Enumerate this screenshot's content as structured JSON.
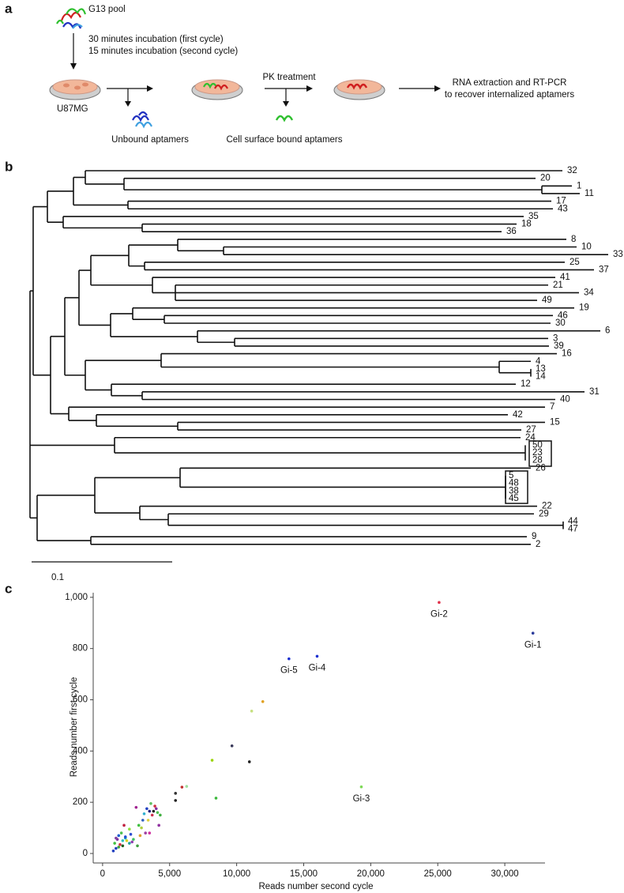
{
  "panel_labels": [
    "a",
    "b",
    "c"
  ],
  "panel_a": {
    "pool": "G13 pool",
    "incubation_1": "30 minutes incubation (first cycle)",
    "incubation_2": "15 minutes incubation (second cycle)",
    "cells": "U87MG",
    "treatment": "PK treatment",
    "unbound": "Unbound aptamers",
    "surface_bound": "Cell surface bound aptamers",
    "recovery_1": "RNA extraction and RT-PCR",
    "recovery_2": "to recover internalized aptamers"
  },
  "panel_b": {
    "leaves": [
      "32",
      "20",
      "1",
      "11",
      "17",
      "43",
      "35",
      "18",
      "36",
      "8",
      "10",
      "33",
      "25",
      "37",
      "41",
      "21",
      "34",
      "49",
      "19",
      "46",
      "30",
      "6",
      "3",
      "39",
      "16",
      "4",
      "13",
      "14",
      "12",
      "31",
      "40",
      "7",
      "42",
      "15",
      "27",
      "24",
      "50",
      "23",
      "28",
      "26",
      "5",
      "48",
      "38",
      "45",
      "22",
      "29",
      "44",
      "47",
      "9",
      "2"
    ],
    "scale_label": "0.1"
  },
  "chart_data": {
    "type": "scatter",
    "x_label": "Reads number second cycle",
    "y_label": "Reads number first cycle",
    "xlim": [
      -700,
      33000
    ],
    "ylim": [
      -37,
      1018
    ],
    "xticks": [
      0,
      {
        "value": 5000,
        "label": "5,000"
      },
      {
        "value": 10000,
        "label": "10,000"
      },
      {
        "value": 15000,
        "label": "15,000"
      },
      {
        "value": 20000,
        "label": "20,000"
      },
      {
        "value": 25000,
        "label": "25,000"
      },
      {
        "value": 30000,
        "label": "30,000"
      }
    ],
    "yticks": [
      0,
      200,
      400,
      600,
      800,
      {
        "value": 1000,
        "label": "1,000"
      }
    ],
    "x": [
      32100,
      25100,
      19300,
      16000,
      13900,
      8170,
      9650,
      10950,
      11120,
      11950,
      8460,
      5440,
      5440,
      5920,
      6270,
      1000,
      900,
      1100,
      1200,
      1300,
      1400,
      1500,
      1600,
      1700,
      1800,
      2000,
      2100,
      2200,
      2500,
      2600,
      2700,
      2900,
      3000,
      3100,
      3200,
      3300,
      3500,
      3600,
      3700,
      3800,
      3900,
      4000,
      4100,
      4200,
      4300,
      3400,
      2300,
      1500,
      1000,
      1200,
      1700,
      2800,
      3500,
      800,
      2000
    ],
    "values": [
      860,
      980,
      260,
      770,
      760,
      364,
      420,
      358,
      556,
      593,
      216,
      207,
      235,
      259,
      262,
      20,
      40,
      55,
      70,
      35,
      80,
      30,
      110,
      60,
      50,
      95,
      75,
      45,
      180,
      30,
      110,
      100,
      130,
      155,
      80,
      175,
      165,
      195,
      150,
      165,
      185,
      175,
      160,
      110,
      150,
      130,
      55,
      50,
      60,
      25,
      65,
      70,
      80,
      10,
      40
    ],
    "colors": [
      "#2a3a9a",
      "#e0304a",
      "#7ed957",
      "#1a2fd0",
      "#1a2fd0",
      "#9ad400",
      "#3a3a5a",
      "#222222",
      "#c6e080",
      "#e0a020",
      "#3cb83c",
      "#222222",
      "#333333",
      "#c03030",
      "#9fe09f",
      "#2040c0",
      "#40c040",
      "#8030a0",
      "#2060d0",
      "#d03040",
      "#50c050",
      "#206020",
      "#c02040",
      "#20b0c0",
      "#d8d020",
      "#90e040",
      "#3050d0",
      "#9040b0",
      "#a02090",
      "#40a040",
      "#40c040",
      "#b0d040",
      "#3060c0",
      "#30b0d0",
      "#a040a0",
      "#2040c0",
      "#202080",
      "#60c060",
      "#d03050",
      "#222222",
      "#d03040",
      "#8030a0",
      "#50c050",
      "#9030a0",
      "#40b040",
      "#e0d040",
      "#40c060",
      "#30c0c0",
      "#8040a0",
      "#40a040",
      "#2050d0",
      "#e0a030",
      "#d030a0",
      "#2040c0",
      "#20a0a0"
    ],
    "point_labels": [
      "Gi-1",
      "Gi-2",
      "Gi-3",
      "Gi-4",
      "Gi-5",
      null,
      null,
      null,
      null,
      null,
      null,
      null,
      null,
      null,
      null,
      null,
      null,
      null,
      null,
      null,
      null,
      null,
      null,
      null,
      null,
      null,
      null,
      null,
      null,
      null,
      null,
      null,
      null,
      null,
      null,
      null,
      null,
      null,
      null,
      null,
      null,
      null,
      null,
      null,
      null,
      null,
      null,
      null,
      null,
      null,
      null,
      null,
      null,
      null,
      null
    ]
  }
}
